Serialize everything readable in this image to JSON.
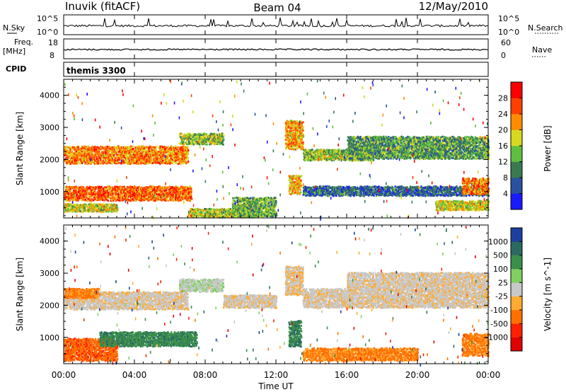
{
  "header": {
    "station": "Inuvik (fitACF)",
    "beam": "Beam 04",
    "date": "12/May/2010"
  },
  "noise_panel": {
    "left_label": "N.Sky",
    "left_ticks": [
      "10^5",
      "10^0"
    ],
    "right_label": "N.Search",
    "right_ticks": [
      "10^5",
      "10^0"
    ]
  },
  "freq_panel": {
    "left_label_1": "Freq.",
    "left_label_2": "[MHz]",
    "left_ticks": [
      "18",
      "8"
    ],
    "right_label": "Nave",
    "right_ticks": [
      "60",
      "0"
    ]
  },
  "cpid_panel": {
    "label": "CPID",
    "value": "themis 3300"
  },
  "x_axis": {
    "label": "Time UT",
    "ticks": [
      "00:00",
      "04:00",
      "08:00",
      "12:00",
      "16:00",
      "20:00",
      "00:00"
    ]
  },
  "chart_data": [
    {
      "type": "heatmap",
      "title": "",
      "xlabel": "Time UT",
      "ylabel": "Slant Range [km]",
      "x_range_hours": [
        0,
        24
      ],
      "ylim": [
        180,
        4500
      ],
      "y_ticks": [
        1000,
        2000,
        3000,
        4000
      ],
      "colorbar": {
        "label": "Power [dB]",
        "ticks": [
          "4",
          "8",
          "12",
          "16",
          "20",
          "24",
          "28"
        ],
        "colors": [
          "#1a1aff",
          "#2a50a0",
          "#3a7a50",
          "#5fbf40",
          "#d8d820",
          "#ff8c00",
          "#ff4000",
          "#ff0000"
        ]
      },
      "bands": [
        {
          "t": [
            0.0,
            7.0
          ],
          "range": [
            1850,
            2400
          ],
          "level": 0.75
        },
        {
          "t": [
            0.0,
            7.2
          ],
          "range": [
            700,
            1150
          ],
          "level": 0.8
        },
        {
          "t": [
            0.0,
            3.0
          ],
          "range": [
            350,
            600
          ],
          "level": 0.55
        },
        {
          "t": [
            6.5,
            9.0
          ],
          "range": [
            2450,
            2800
          ],
          "level": 0.45
        },
        {
          "t": [
            7.0,
            11.0
          ],
          "range": [
            180,
            450
          ],
          "level": 0.5
        },
        {
          "t": [
            12.5,
            13.5
          ],
          "range": [
            2300,
            3200
          ],
          "level": 0.7
        },
        {
          "t": [
            12.7,
            13.4
          ],
          "range": [
            900,
            1500
          ],
          "level": 0.65
        },
        {
          "t": [
            13.5,
            17.5
          ],
          "range": [
            1950,
            2300
          ],
          "level": 0.45
        },
        {
          "t": [
            16.0,
            24.0
          ],
          "range": [
            2000,
            2700
          ],
          "level": 0.35
        },
        {
          "t": [
            13.5,
            24.0
          ],
          "range": [
            850,
            1150
          ],
          "level": 0.2
        },
        {
          "t": [
            22.5,
            24.0
          ],
          "range": [
            900,
            1400
          ],
          "level": 0.75
        },
        {
          "t": [
            21.0,
            24.0
          ],
          "range": [
            400,
            700
          ],
          "level": 0.55
        },
        {
          "t": [
            9.5,
            12.0
          ],
          "range": [
            200,
            800
          ],
          "level": 0.4
        }
      ]
    },
    {
      "type": "heatmap",
      "title": "",
      "xlabel": "Time UT",
      "ylabel": "Slant Range [km]",
      "x_range_hours": [
        0,
        24
      ],
      "ylim": [
        180,
        4500
      ],
      "y_ticks": [
        1000,
        2000,
        3000,
        4000
      ],
      "colorbar": {
        "label": "Velocity [m s^-1]",
        "ticks": [
          "1000",
          "500",
          "100",
          "25",
          "-25",
          "-100",
          "-500",
          "-1000"
        ],
        "colors": [
          "#1f3fa0",
          "#2a6a60",
          "#3a8f4a",
          "#7fd060",
          "#c8c8c8",
          "#ffaa30",
          "#ff7000",
          "#ff2000",
          "#e00000"
        ]
      },
      "bands": [
        {
          "t": [
            0.0,
            7.0
          ],
          "range": [
            1850,
            2400
          ],
          "v": -0.05
        },
        {
          "t": [
            0.0,
            2.0
          ],
          "range": [
            2200,
            2500
          ],
          "v": -0.45
        },
        {
          "t": [
            0.0,
            3.0
          ],
          "range": [
            250,
            950
          ],
          "v": -0.55
        },
        {
          "t": [
            2.0,
            7.5
          ],
          "range": [
            700,
            1150
          ],
          "v": 0.55
        },
        {
          "t": [
            6.5,
            9.0
          ],
          "range": [
            2400,
            2800
          ],
          "v": 0.05
        },
        {
          "t": [
            9.0,
            12.0
          ],
          "range": [
            1900,
            2300
          ],
          "v": -0.05
        },
        {
          "t": [
            12.5,
            13.5
          ],
          "range": [
            2300,
            3200
          ],
          "v": -0.1
        },
        {
          "t": [
            12.7,
            13.4
          ],
          "range": [
            700,
            1500
          ],
          "v": 0.6
        },
        {
          "t": [
            13.5,
            24.0
          ],
          "range": [
            1900,
            2500
          ],
          "v": -0.05
        },
        {
          "t": [
            16.0,
            24.0
          ],
          "range": [
            2500,
            3000
          ],
          "v": -0.05
        },
        {
          "t": [
            13.5,
            20.0
          ],
          "range": [
            250,
            650
          ],
          "v": -0.45
        },
        {
          "t": [
            22.5,
            24.0
          ],
          "range": [
            400,
            1100
          ],
          "v": -0.45
        }
      ]
    }
  ]
}
